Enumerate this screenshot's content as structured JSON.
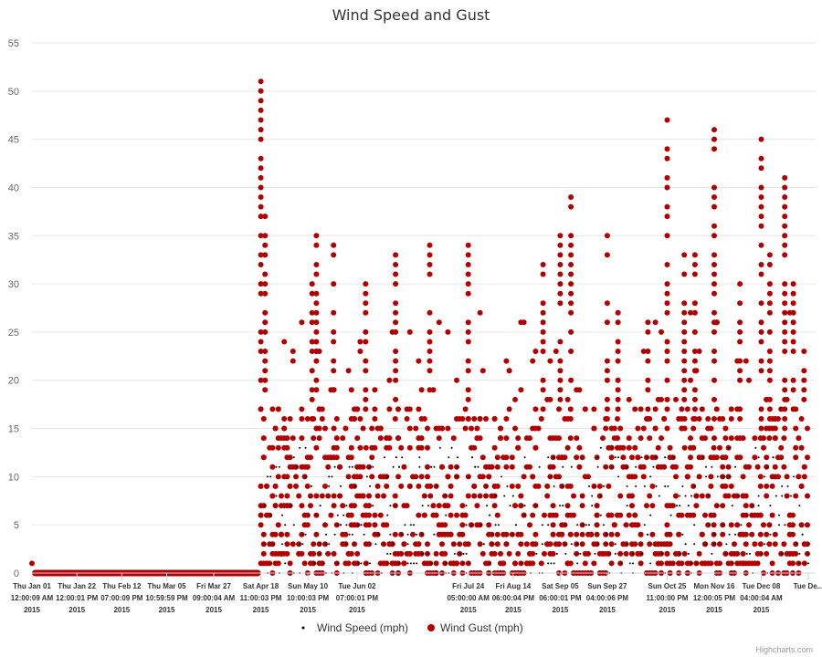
{
  "chart_data": {
    "type": "scatter",
    "title": "Wind Speed and Gust",
    "xlabel": "",
    "ylabel": "",
    "ylim": [
      0,
      55
    ],
    "yticks": [
      0,
      5,
      10,
      15,
      20,
      25,
      30,
      35,
      40,
      45,
      50,
      55
    ],
    "grid": true,
    "legend_position": "bottom-center",
    "credits": "Highcharts.com",
    "x_ticks": [
      {
        "date": "2015-01-01",
        "lines": [
          "Thu Jan 01",
          "12:00:09 AM",
          "2015"
        ]
      },
      {
        "date": "2015-01-22",
        "lines": [
          "Thu Jan 22",
          "12:00:01 PM",
          "2015"
        ]
      },
      {
        "date": "2015-02-12",
        "lines": [
          "Thu Feb 12",
          "07:00:09 PM",
          "2015"
        ]
      },
      {
        "date": "2015-03-05",
        "lines": [
          "Thu Mar 05",
          "10:59:59 PM",
          "2015"
        ]
      },
      {
        "date": "2015-03-27",
        "lines": [
          "Fri Mar 27",
          "09:00:04 AM",
          "2015"
        ]
      },
      {
        "date": "2015-04-18",
        "lines": [
          "Sat Apr 18",
          "11:00:03 PM",
          "2015"
        ]
      },
      {
        "date": "2015-05-10",
        "lines": [
          "Sun May 10",
          "10:00:03 PM",
          "2015"
        ]
      },
      {
        "date": "2015-06-02",
        "lines": [
          "Tue Jun 02",
          "07:00:01 PM",
          "2015"
        ]
      },
      {
        "date": "2015-07-24",
        "lines": [
          "Fri Jul 24",
          "05:00:00 AM",
          "2015"
        ]
      },
      {
        "date": "2015-08-14",
        "lines": [
          "Fri Aug 14",
          "06:00:04 PM",
          "2015"
        ]
      },
      {
        "date": "2015-09-05",
        "lines": [
          "Sat Sep 05",
          "06:00:01 PM",
          "2015"
        ]
      },
      {
        "date": "2015-09-27",
        "lines": [
          "Sun Sep 27",
          "04:00:06 PM",
          "2015"
        ]
      },
      {
        "date": "2015-10-25",
        "lines": [
          "Sun Oct 25",
          "11:00:00 PM",
          "2015"
        ]
      },
      {
        "date": "2015-11-16",
        "lines": [
          "Mon Nov 16",
          "12:00:05 PM",
          "2015"
        ]
      },
      {
        "date": "2015-12-08",
        "lines": [
          "Tue Dec 08",
          "04:00:04 AM",
          "2015"
        ]
      },
      {
        "date": "2015-12-30",
        "lines": [
          "Tue De...",
          "",
          ""
        ]
      }
    ],
    "series": [
      {
        "name": "Wind Speed (mph)",
        "color": "#000000",
        "marker": "small-dot"
      },
      {
        "name": "Wind Gust (mph)",
        "color": "#b20000",
        "marker": "circle"
      }
    ],
    "notable_points": [
      {
        "x": "Thu Jan 01 2015",
        "series": "Wind Gust (mph)",
        "y": 1
      },
      {
        "x": "Sat Apr 18 2015",
        "series": "Wind Gust (mph)",
        "y": 51
      },
      {
        "x": "Sat Apr 18 2015",
        "series": "Wind Gust (mph)",
        "y": 44
      },
      {
        "x": "Sun Oct 25 2015",
        "series": "Wind Gust (mph)",
        "y": 47
      },
      {
        "x": "Mon Nov 16 2015",
        "series": "Wind Gust (mph)",
        "y": 46
      },
      {
        "x": "Tue Dec 08 2015",
        "series": "Wind Gust (mph)",
        "y": 45
      },
      {
        "x": "Tue Dec 08 2015",
        "series": "Wind Gust (mph)",
        "y": 41
      }
    ],
    "value_pattern": "Jan 01 – Apr 18 2015: both series ~0 mph. From Apr 18 2015: gusts mostly 0–22 mph, spikes up to ~51 mph; wind speed mostly 0–15 mph"
  }
}
